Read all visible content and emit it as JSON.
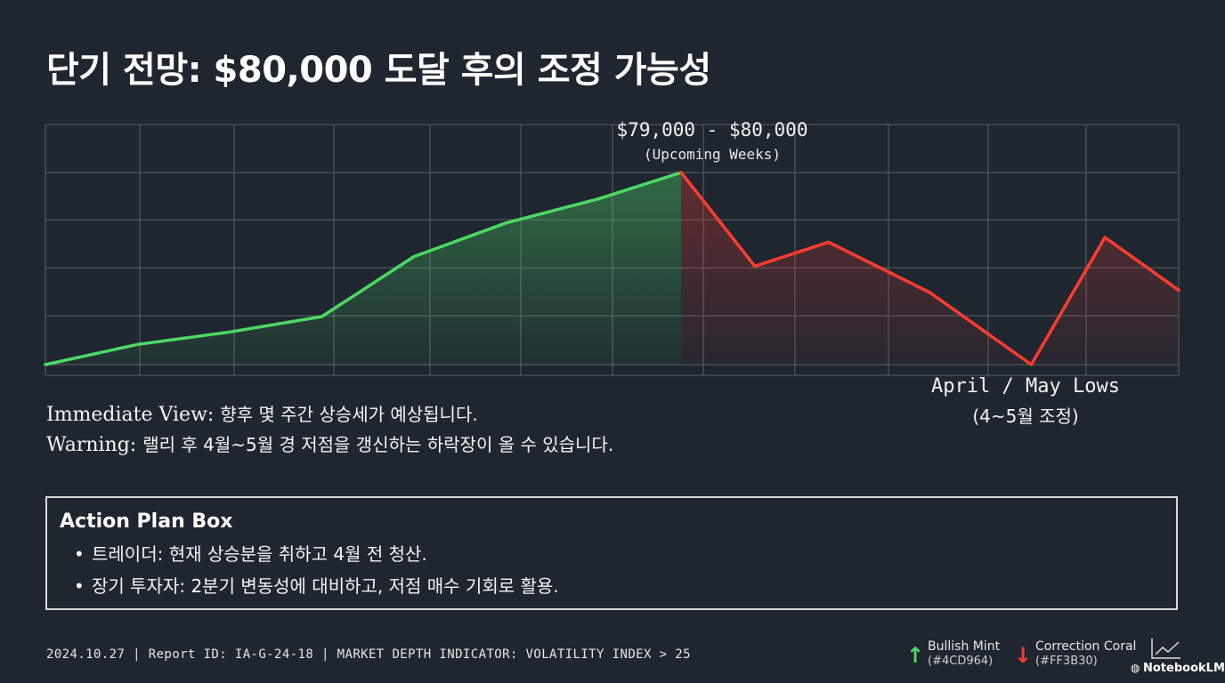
{
  "title": "단기 전망: $80,000 도달 후의 조정 가능성",
  "annotations": {
    "peak_range": "$79,000 - $80,000",
    "peak_sub": "(Upcoming Weeks)",
    "low_label": "April / May Lows",
    "low_sub": "(4~5월 조정)"
  },
  "notes": {
    "immediate_label": "Immediate View:",
    "immediate_text": "향후 몇 주간 상승세가 예상됩니다.",
    "warning_label": "Warning:",
    "warning_text": "랠리 후 4월~5월 경 저점을 갱신하는 하락장이 올 수 있습니다."
  },
  "action_plan": {
    "title": "Action Plan Box",
    "items": [
      "트레이더: 현재 상승분을 취하고 4월 전 청산.",
      "장기 투자자: 2분기 변동성에 대비하고, 저점 매수 기회로 활용."
    ]
  },
  "footer": "2024.10.27 | Report ID: IA-G-24-18 | MARKET DEPTH INDICATOR: VOLATILITY INDEX > 25",
  "legend": [
    {
      "arrow": "↑",
      "name": "Bullish Mint",
      "hex": "(#4CD964)",
      "color": "#4CD964"
    },
    {
      "arrow": "↓",
      "name": "Correction Coral",
      "hex": "(#FF3B30)",
      "color": "#FF3B30"
    }
  ],
  "brand": "NotebookLM",
  "chart_data": {
    "type": "line",
    "title": "",
    "xlabel": "",
    "ylabel": "",
    "grid": true,
    "y_range": [
      0,
      5
    ],
    "x_range": [
      0,
      12.3
    ],
    "series": [
      {
        "name": "Bullish Mint",
        "color": "#4CD964",
        "x": [
          0,
          1,
          2,
          3,
          4,
          5,
          6,
          6.9
        ],
        "y": [
          0,
          0.42,
          0.68,
          1.0,
          2.25,
          2.95,
          3.45,
          4.0
        ]
      },
      {
        "name": "Correction Coral",
        "color": "#FF3B30",
        "x": [
          6.9,
          7.7,
          8.5,
          9.6,
          10.7,
          11.5,
          12.3
        ],
        "y": [
          4.0,
          2.05,
          2.55,
          1.5,
          0.0,
          2.65,
          1.55
        ]
      }
    ]
  }
}
